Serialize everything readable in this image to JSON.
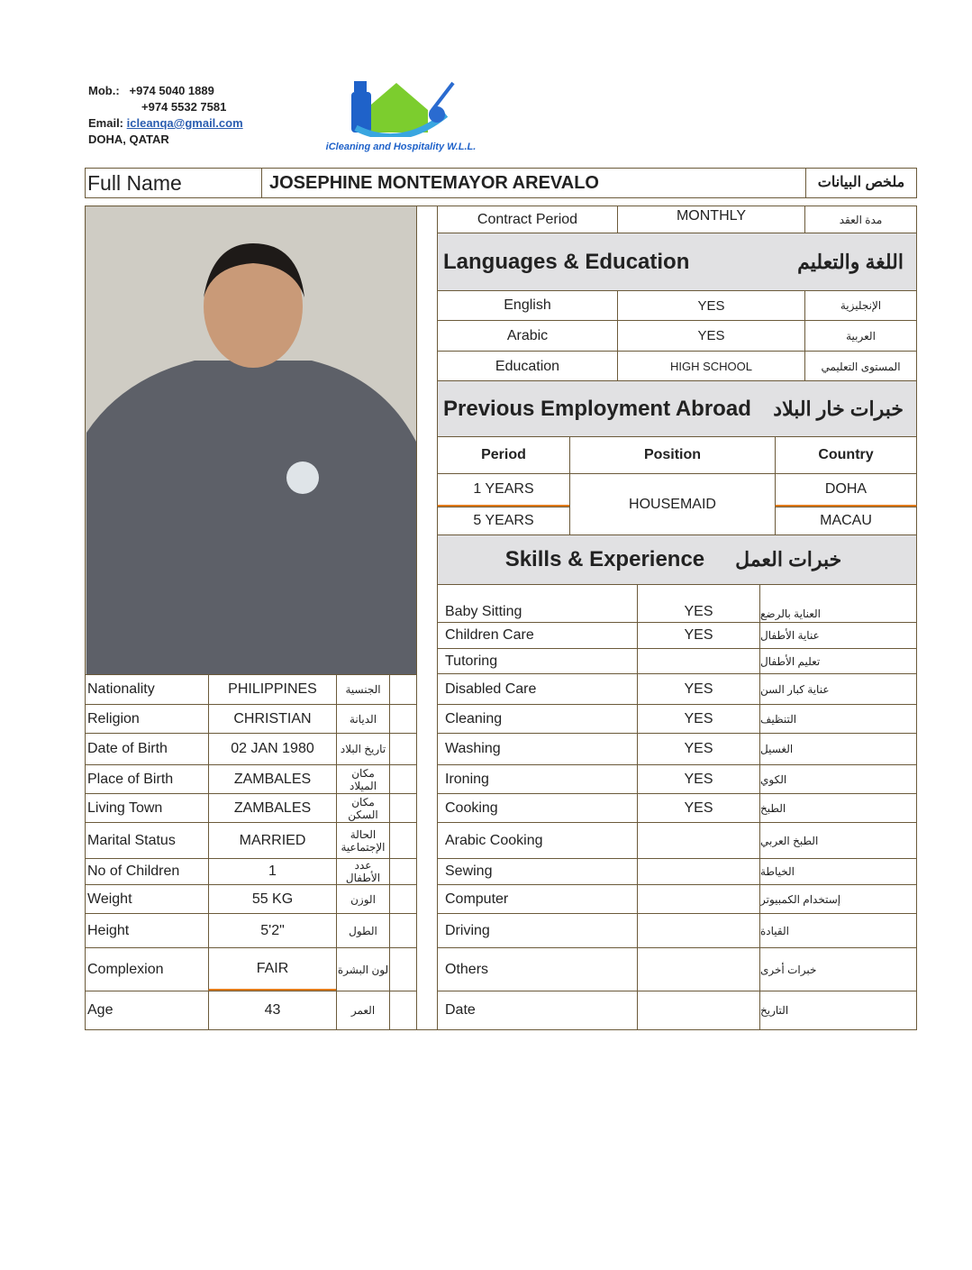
{
  "header": {
    "mob_label": "Mob.:",
    "phones": [
      "+974 5040 1889",
      "+974 5532 7581"
    ],
    "email_label": "Email:",
    "email": "icleanqa@gmail.com",
    "location": "DOHA, QATAR",
    "logo_text": "iCleaning and Hospitality W.L.L."
  },
  "name_row": {
    "label": "Full Name",
    "value": "JOSEPHINE MONTEMAYOR AREVALO",
    "ar": "ملخص البيانات"
  },
  "personal": [
    {
      "label": "Nationality",
      "value": "PHILIPPINES",
      "ar": "الجنسية"
    },
    {
      "label": "Religion",
      "value": "CHRISTIAN",
      "ar": "الديانة"
    },
    {
      "label": "Date of Birth",
      "value": "02 JAN 1980",
      "ar": "تاريخ البلاد"
    },
    {
      "label": "Place of Birth",
      "value": "ZAMBALES",
      "ar": "مكان الميلاد"
    },
    {
      "label": "Living Town",
      "value": "ZAMBALES",
      "ar": "مكان السكن"
    },
    {
      "label": "Marital Status",
      "value": "MARRIED",
      "ar": "الحالة الإجتماعية"
    },
    {
      "label": "No of Children",
      "value": "1",
      "ar": "عدد الأطفال"
    },
    {
      "label": "Weight",
      "value": "55 KG",
      "ar": "الوزن"
    },
    {
      "label": "Height",
      "value": "5'2\"",
      "ar": "الطول"
    },
    {
      "label": "Complexion",
      "value": "FAIR",
      "ar": "لون البشرة"
    },
    {
      "label": "Age",
      "value": "43",
      "ar": "العمر"
    }
  ],
  "contract": {
    "label": "Contract Period",
    "value": "MONTHLY",
    "ar": "مدة العقد"
  },
  "languages": {
    "title": "Languages & Education",
    "ar": "اللغة والتعليم",
    "rows": [
      {
        "label": "English",
        "value": "YES",
        "ar": "الإنجليزية"
      },
      {
        "label": "Arabic",
        "value": "YES",
        "ar": "العربية"
      },
      {
        "label": "Education",
        "value": "HIGH SCHOOL",
        "ar": "المستوى التعليمي"
      }
    ]
  },
  "employment": {
    "title": "Previous Employment Abroad",
    "ar": "خبرات خار البلاد",
    "headers": [
      "Period",
      "Position",
      "Country"
    ],
    "periods": [
      "1 YEARS",
      "5 YEARS"
    ],
    "position": "HOUSEMAID",
    "countries": [
      "DOHA",
      "MACAU"
    ]
  },
  "skills": {
    "title": "Skills & Experience",
    "ar": "خبرات العمل",
    "rows": [
      {
        "label": "Baby Sitting",
        "value": "YES",
        "ar": "العناية بالرضع"
      },
      {
        "label": "Children Care",
        "value": "YES",
        "ar": "عناية الأطفال"
      },
      {
        "label": "Tutoring",
        "value": "",
        "ar": "تعليم الأطفال"
      },
      {
        "label": "Disabled Care",
        "value": "YES",
        "ar": "عناية كبار السن"
      },
      {
        "label": "Cleaning",
        "value": "YES",
        "ar": "التنظيف"
      },
      {
        "label": "Washing",
        "value": "YES",
        "ar": "الغسيل"
      },
      {
        "label": "Ironing",
        "value": "YES",
        "ar": "الكوي"
      },
      {
        "label": "Cooking",
        "value": "YES",
        "ar": "الطبخ"
      },
      {
        "label": "Arabic Cooking",
        "value": "",
        "ar": "الطبخ العربي"
      },
      {
        "label": "Sewing",
        "value": "",
        "ar": "الخياطة"
      },
      {
        "label": "Computer",
        "value": "",
        "ar": "إستخدام الكمبيوتر"
      },
      {
        "label": "Driving",
        "value": "",
        "ar": "القيادة"
      },
      {
        "label": "Others",
        "value": "",
        "ar": "خبرات أخرى"
      },
      {
        "label": "Date",
        "value": "",
        "ar": "التاريخ"
      }
    ]
  }
}
